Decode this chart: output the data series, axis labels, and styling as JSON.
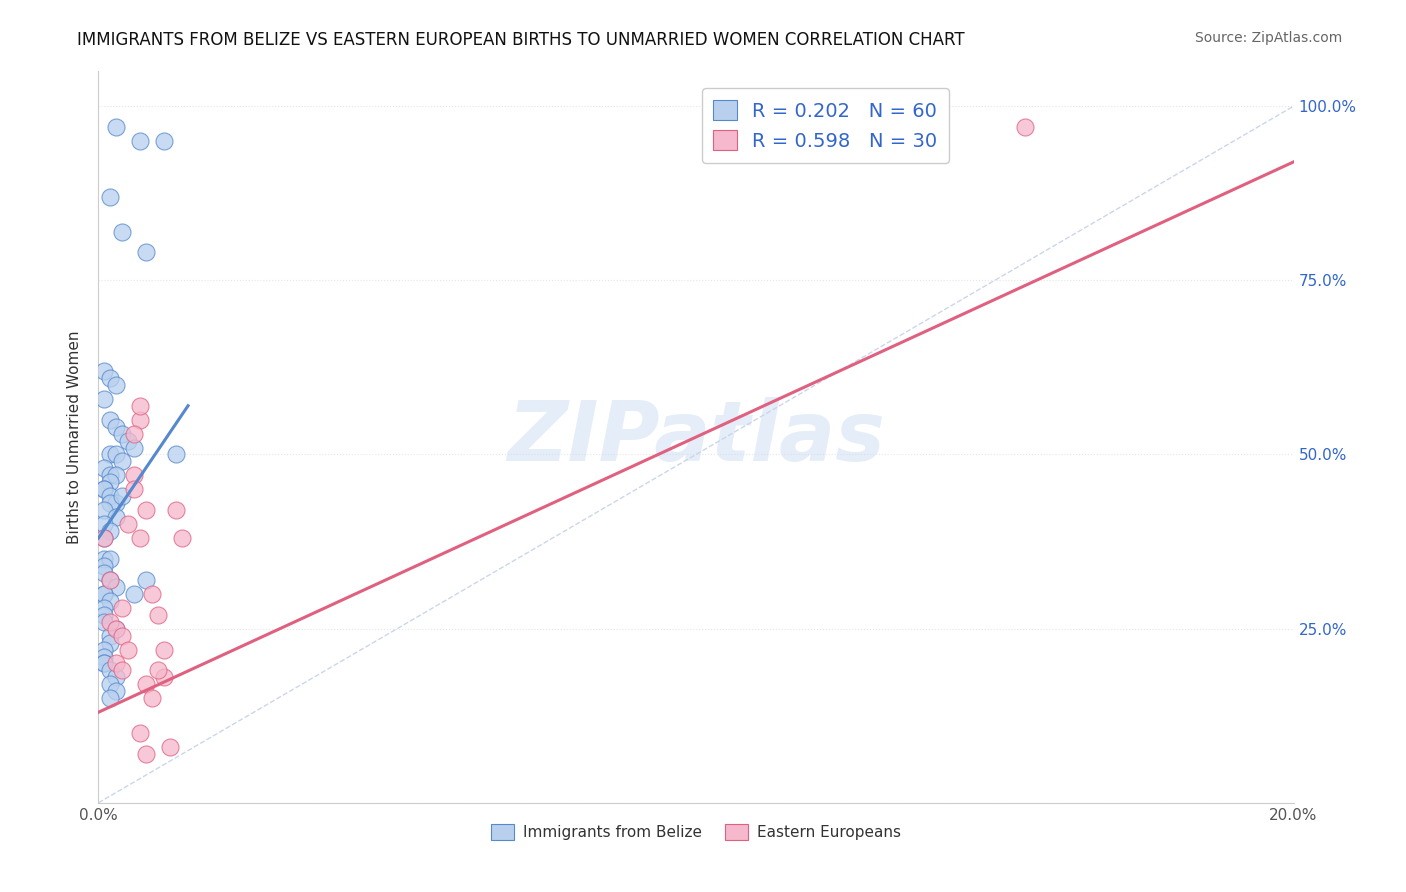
{
  "title": "IMMIGRANTS FROM BELIZE VS EASTERN EUROPEAN BIRTHS TO UNMARRIED WOMEN CORRELATION CHART",
  "source": "Source: ZipAtlas.com",
  "ylabel": "Births to Unmarried Women",
  "watermark": "ZIPatlas",
  "blue_label": "Immigrants from Belize",
  "pink_label": "Eastern Europeans",
  "blue_R": "0.202",
  "blue_N": "60",
  "pink_R": "0.598",
  "pink_N": "30",
  "blue_color": "#b8d0ee",
  "blue_edge_color": "#5588cc",
  "pink_color": "#f5b8cc",
  "pink_edge_color": "#e06080",
  "xmin": 0.0,
  "xmax": 0.2,
  "ymin": 0.0,
  "ymax": 1.05,
  "yticks": [
    0.0,
    0.25,
    0.5,
    0.75,
    1.0
  ],
  "ytick_labels": [
    "",
    "25.0%",
    "50.0%",
    "75.0%",
    "100.0%"
  ],
  "xticks": [
    0.0,
    0.04,
    0.08,
    0.12,
    0.16,
    0.2
  ],
  "xtick_labels": [
    "0.0%",
    "",
    "",
    "",
    "",
    "20.0%"
  ],
  "blue_scatter_x": [
    0.003,
    0.007,
    0.011,
    0.002,
    0.004,
    0.008,
    0.001,
    0.002,
    0.003,
    0.001,
    0.002,
    0.003,
    0.004,
    0.005,
    0.006,
    0.002,
    0.003,
    0.004,
    0.001,
    0.002,
    0.003,
    0.002,
    0.001,
    0.001,
    0.002,
    0.003,
    0.002,
    0.001,
    0.003,
    0.001,
    0.002,
    0.001,
    0.013,
    0.001,
    0.002,
    0.001,
    0.001,
    0.002,
    0.003,
    0.001,
    0.001,
    0.004,
    0.002,
    0.001,
    0.001,
    0.001,
    0.003,
    0.002,
    0.006,
    0.002,
    0.001,
    0.001,
    0.001,
    0.001,
    0.008,
    0.002,
    0.003,
    0.002,
    0.003,
    0.002
  ],
  "blue_scatter_y": [
    0.97,
    0.95,
    0.95,
    0.87,
    0.82,
    0.79,
    0.62,
    0.61,
    0.6,
    0.58,
    0.55,
    0.54,
    0.53,
    0.52,
    0.51,
    0.5,
    0.5,
    0.49,
    0.48,
    0.47,
    0.47,
    0.46,
    0.45,
    0.45,
    0.44,
    0.43,
    0.43,
    0.42,
    0.41,
    0.4,
    0.39,
    0.38,
    0.5,
    0.35,
    0.35,
    0.34,
    0.33,
    0.32,
    0.31,
    0.3,
    0.3,
    0.44,
    0.29,
    0.28,
    0.27,
    0.26,
    0.25,
    0.24,
    0.3,
    0.23,
    0.22,
    0.21,
    0.2,
    0.2,
    0.32,
    0.19,
    0.18,
    0.17,
    0.16,
    0.15
  ],
  "pink_scatter_x": [
    0.001,
    0.002,
    0.004,
    0.002,
    0.003,
    0.004,
    0.005,
    0.003,
    0.004,
    0.006,
    0.007,
    0.005,
    0.006,
    0.008,
    0.007,
    0.009,
    0.01,
    0.011,
    0.008,
    0.009,
    0.013,
    0.014,
    0.007,
    0.008,
    0.011,
    0.01,
    0.012,
    0.155,
    0.006,
    0.007
  ],
  "pink_scatter_y": [
    0.38,
    0.32,
    0.28,
    0.26,
    0.25,
    0.24,
    0.22,
    0.2,
    0.19,
    0.47,
    0.55,
    0.4,
    0.45,
    0.42,
    0.38,
    0.3,
    0.27,
    0.18,
    0.17,
    0.15,
    0.42,
    0.38,
    0.1,
    0.07,
    0.22,
    0.19,
    0.08,
    0.97,
    0.53,
    0.57
  ],
  "blue_line_x": [
    0.0,
    0.015
  ],
  "blue_line_y": [
    0.38,
    0.57
  ],
  "pink_line_x": [
    0.0,
    0.2
  ],
  "pink_line_y": [
    0.13,
    0.92
  ],
  "diag_line_x": [
    0.0,
    0.2
  ],
  "diag_line_y": [
    0.0,
    1.0
  ],
  "title_fontsize": 12,
  "source_fontsize": 10,
  "legend_fontsize": 14,
  "axis_label_fontsize": 11,
  "tick_fontsize": 11,
  "watermark_fontsize": 60,
  "watermark_color": "#c5d8f0",
  "watermark_alpha": 0.45,
  "background_color": "#ffffff",
  "grid_color": "#e0e0e0",
  "right_axis_color": "#3366cc",
  "legend_text_color": "#3366cc",
  "title_color": "#111111",
  "source_color": "#666666",
  "spine_color": "#cccccc",
  "tick_color": "#555555"
}
